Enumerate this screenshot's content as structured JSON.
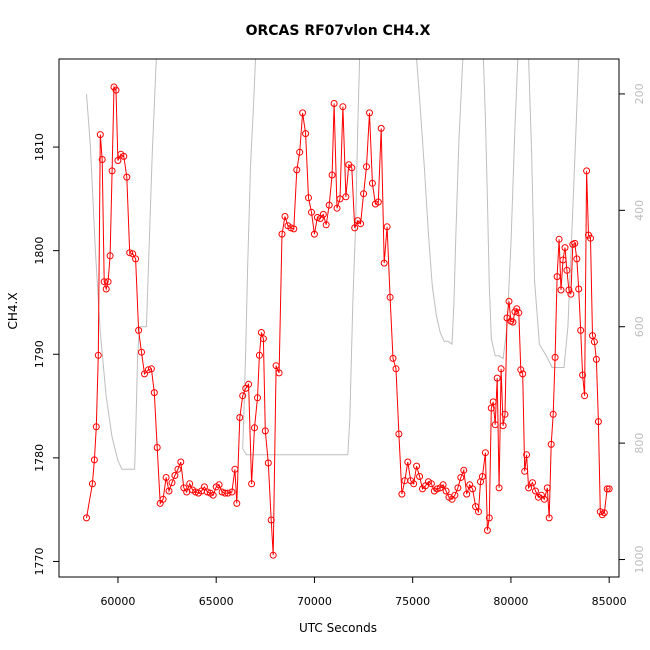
{
  "chart_data": {
    "type": "line",
    "title": "ORCAS RF07vlon CH4.X",
    "xlabel": "UTC Seconds",
    "ylabel": "CH4.X",
    "xlim": [
      57000,
      85500
    ],
    "ylim": [
      1768.5,
      1818.5
    ],
    "y2lim": [
      1030,
      140
    ],
    "x_ticks": [
      60000,
      65000,
      70000,
      75000,
      80000,
      85000
    ],
    "y_ticks": [
      1770,
      1780,
      1790,
      1800,
      1810
    ],
    "y2_ticks": [
      200,
      400,
      600,
      800,
      1000
    ],
    "grid": false,
    "colors": {
      "ch4": "#ff0000",
      "pressure": "#bebebe",
      "axis": "#000000"
    },
    "series": [
      {
        "axis": "left",
        "points": [
          [
            58400,
            1774.2
          ],
          [
            58700,
            1777.5
          ],
          [
            58800,
            1779.8
          ],
          [
            58900,
            1783.0
          ],
          [
            59000,
            1789.9
          ],
          [
            59100,
            1811.2
          ],
          [
            59200,
            1808.8
          ],
          [
            59300,
            1797.0
          ],
          [
            59400,
            1796.3
          ],
          [
            59500,
            1797.0
          ],
          [
            59600,
            1799.5
          ],
          [
            59700,
            1807.7
          ],
          [
            59800,
            1815.8
          ],
          [
            59900,
            1815.5
          ],
          [
            60000,
            1808.7
          ],
          [
            60150,
            1809.3
          ],
          [
            60300,
            1809.1
          ],
          [
            60450,
            1807.1
          ],
          [
            60600,
            1799.8
          ],
          [
            60750,
            1799.7
          ],
          [
            60900,
            1799.2
          ],
          [
            61050,
            1792.3
          ],
          [
            61200,
            1790.2
          ],
          [
            61350,
            1788.1
          ],
          [
            61550,
            1788.5
          ],
          [
            61700,
            1788.6
          ],
          [
            61850,
            1786.3
          ],
          [
            62000,
            1781.0
          ],
          [
            62150,
            1775.6
          ],
          [
            62300,
            1776.0
          ],
          [
            62450,
            1778.1
          ],
          [
            62600,
            1776.8
          ],
          [
            62750,
            1777.6
          ],
          [
            62900,
            1778.3
          ],
          [
            63050,
            1778.9
          ],
          [
            63200,
            1779.6
          ],
          [
            63350,
            1777.1
          ],
          [
            63500,
            1776.7
          ],
          [
            63650,
            1777.5
          ],
          [
            63800,
            1776.9
          ],
          [
            63950,
            1776.7
          ],
          [
            64100,
            1776.6
          ],
          [
            64250,
            1776.8
          ],
          [
            64400,
            1777.2
          ],
          [
            64550,
            1776.7
          ],
          [
            64700,
            1776.6
          ],
          [
            64850,
            1776.4
          ],
          [
            65000,
            1777.2
          ],
          [
            65150,
            1777.4
          ],
          [
            65300,
            1776.7
          ],
          [
            65450,
            1776.6
          ],
          [
            65600,
            1776.6
          ],
          [
            65800,
            1776.7
          ],
          [
            65950,
            1778.9
          ],
          [
            66050,
            1775.6
          ],
          [
            66200,
            1783.9
          ],
          [
            66350,
            1786.0
          ],
          [
            66500,
            1786.7
          ],
          [
            66650,
            1787.1
          ],
          [
            66800,
            1777.5
          ],
          [
            66950,
            1782.9
          ],
          [
            67100,
            1785.8
          ],
          [
            67200,
            1789.9
          ],
          [
            67300,
            1792.1
          ],
          [
            67400,
            1791.5
          ],
          [
            67500,
            1782.6
          ],
          [
            67650,
            1779.5
          ],
          [
            67800,
            1774.0
          ],
          [
            67900,
            1770.6
          ],
          [
            68050,
            1788.9
          ],
          [
            68200,
            1788.2
          ],
          [
            68350,
            1801.6
          ],
          [
            68500,
            1803.3
          ],
          [
            68650,
            1802.4
          ],
          [
            68800,
            1802.2
          ],
          [
            68950,
            1802.1
          ],
          [
            69100,
            1807.8
          ],
          [
            69250,
            1809.5
          ],
          [
            69400,
            1813.3
          ],
          [
            69550,
            1811.3
          ],
          [
            69700,
            1805.1
          ],
          [
            69850,
            1803.7
          ],
          [
            70000,
            1801.6
          ],
          [
            70150,
            1803.2
          ],
          [
            70300,
            1803.1
          ],
          [
            70450,
            1803.5
          ],
          [
            70600,
            1802.5
          ],
          [
            70750,
            1804.4
          ],
          [
            70900,
            1807.3
          ],
          [
            71000,
            1814.2
          ],
          [
            71150,
            1804.1
          ],
          [
            71300,
            1805.0
          ],
          [
            71450,
            1813.9
          ],
          [
            71600,
            1805.2
          ],
          [
            71750,
            1808.3
          ],
          [
            71900,
            1808.0
          ],
          [
            72050,
            1802.2
          ],
          [
            72200,
            1802.9
          ],
          [
            72350,
            1802.6
          ],
          [
            72500,
            1805.5
          ],
          [
            72650,
            1808.1
          ],
          [
            72800,
            1813.3
          ],
          [
            72950,
            1806.5
          ],
          [
            73100,
            1804.5
          ],
          [
            73250,
            1804.7
          ],
          [
            73400,
            1811.8
          ],
          [
            73550,
            1798.8
          ],
          [
            73700,
            1802.3
          ],
          [
            73850,
            1795.5
          ],
          [
            74000,
            1789.6
          ],
          [
            74150,
            1788.6
          ],
          [
            74300,
            1782.3
          ],
          [
            74450,
            1776.5
          ],
          [
            74600,
            1777.8
          ],
          [
            74750,
            1779.6
          ],
          [
            74900,
            1777.8
          ],
          [
            75050,
            1777.5
          ],
          [
            75200,
            1779.2
          ],
          [
            75350,
            1778.2
          ],
          [
            75500,
            1777.0
          ],
          [
            75650,
            1777.3
          ],
          [
            75800,
            1777.7
          ],
          [
            75950,
            1777.5
          ],
          [
            76100,
            1776.8
          ],
          [
            76250,
            1777.0
          ],
          [
            76400,
            1777.1
          ],
          [
            76550,
            1777.4
          ],
          [
            76700,
            1776.8
          ],
          [
            76850,
            1776.2
          ],
          [
            77000,
            1776.0
          ],
          [
            77150,
            1776.4
          ],
          [
            77300,
            1777.1
          ],
          [
            77450,
            1778.1
          ],
          [
            77600,
            1778.8
          ],
          [
            77750,
            1776.5
          ],
          [
            77900,
            1777.4
          ],
          [
            78050,
            1777.0
          ],
          [
            78200,
            1775.3
          ],
          [
            78350,
            1774.8
          ],
          [
            78450,
            1777.7
          ],
          [
            78550,
            1778.2
          ],
          [
            78700,
            1780.5
          ],
          [
            78800,
            1773.0
          ],
          [
            78900,
            1774.2
          ],
          [
            79000,
            1784.8
          ],
          [
            79100,
            1785.4
          ],
          [
            79200,
            1783.2
          ],
          [
            79300,
            1787.7
          ],
          [
            79400,
            1777.1
          ],
          [
            79500,
            1788.6
          ],
          [
            79600,
            1783.1
          ],
          [
            79700,
            1784.2
          ],
          [
            79800,
            1793.5
          ],
          [
            79900,
            1795.1
          ],
          [
            80000,
            1793.2
          ],
          [
            80100,
            1793.1
          ],
          [
            80200,
            1794.1
          ],
          [
            80300,
            1794.4
          ],
          [
            80400,
            1794.0
          ],
          [
            80500,
            1788.5
          ],
          [
            80600,
            1788.1
          ],
          [
            80700,
            1778.7
          ],
          [
            80800,
            1780.3
          ],
          [
            80900,
            1777.1
          ],
          [
            81100,
            1777.6
          ],
          [
            81250,
            1776.8
          ],
          [
            81400,
            1776.2
          ],
          [
            81550,
            1776.4
          ],
          [
            81700,
            1776.0
          ],
          [
            81850,
            1777.1
          ],
          [
            81950,
            1774.2
          ],
          [
            82050,
            1781.3
          ],
          [
            82150,
            1784.2
          ],
          [
            82250,
            1789.7
          ],
          [
            82350,
            1797.5
          ],
          [
            82450,
            1801.1
          ],
          [
            82550,
            1796.2
          ],
          [
            82650,
            1799.1
          ],
          [
            82750,
            1800.3
          ],
          [
            82850,
            1798.1
          ],
          [
            82950,
            1796.2
          ],
          [
            83050,
            1795.8
          ],
          [
            83150,
            1800.6
          ],
          [
            83250,
            1800.7
          ],
          [
            83350,
            1799.2
          ],
          [
            83450,
            1796.3
          ],
          [
            83550,
            1792.3
          ],
          [
            83650,
            1788.0
          ],
          [
            83750,
            1786.0
          ],
          [
            83850,
            1807.7
          ],
          [
            83950,
            1801.5
          ],
          [
            84050,
            1801.2
          ],
          [
            84150,
            1791.8
          ],
          [
            84250,
            1791.2
          ],
          [
            84350,
            1789.5
          ],
          [
            84450,
            1783.5
          ],
          [
            84550,
            1774.8
          ],
          [
            84650,
            1774.5
          ],
          [
            84750,
            1774.7
          ],
          [
            84900,
            1777.0
          ],
          [
            85000,
            1777.0
          ]
        ]
      },
      {
        "axis": "right",
        "points": [
          [
            58400,
            200
          ],
          [
            58600,
            290
          ],
          [
            58850,
            470
          ],
          [
            59100,
            610
          ],
          [
            59400,
            720
          ],
          [
            59700,
            790
          ],
          [
            60000,
            830
          ],
          [
            60200,
            845
          ],
          [
            60400,
            845
          ],
          [
            60850,
            845
          ],
          [
            60900,
            790
          ],
          [
            61000,
            650
          ],
          [
            61100,
            600
          ],
          [
            61450,
            600
          ],
          [
            61550,
            500
          ],
          [
            61750,
            300
          ],
          [
            61950,
            140
          ],
          [
            67000,
            140
          ],
          [
            66900,
            220
          ],
          [
            66750,
            320
          ],
          [
            66600,
            500
          ],
          [
            66500,
            640
          ],
          [
            66400,
            760
          ],
          [
            66350,
            810
          ],
          [
            66550,
            820
          ],
          [
            67200,
            820
          ],
          [
            71700,
            820
          ],
          [
            71800,
            760
          ],
          [
            71950,
            560
          ],
          [
            72100,
            420
          ],
          [
            72200,
            260
          ],
          [
            72300,
            140
          ],
          [
            75200,
            140
          ],
          [
            75400,
            230
          ],
          [
            75600,
            330
          ],
          [
            75800,
            440
          ],
          [
            76000,
            530
          ],
          [
            76200,
            580
          ],
          [
            76400,
            610
          ],
          [
            76600,
            625
          ],
          [
            76800,
            625
          ],
          [
            77000,
            630
          ],
          [
            77100,
            560
          ],
          [
            77200,
            440
          ],
          [
            77350,
            280
          ],
          [
            77550,
            140
          ],
          [
            78600,
            140
          ],
          [
            78700,
            240
          ],
          [
            78800,
            380
          ],
          [
            78900,
            530
          ],
          [
            79000,
            620
          ],
          [
            79200,
            650
          ],
          [
            79400,
            650
          ],
          [
            79600,
            655
          ],
          [
            79800,
            600
          ],
          [
            80000,
            460
          ],
          [
            80200,
            260
          ],
          [
            80350,
            140
          ],
          [
            80900,
            140
          ],
          [
            81050,
            300
          ],
          [
            81200,
            520
          ],
          [
            81450,
            630
          ],
          [
            81800,
            650
          ],
          [
            82100,
            670
          ],
          [
            82350,
            670
          ],
          [
            82700,
            670
          ],
          [
            82900,
            600
          ],
          [
            83100,
            440
          ],
          [
            83300,
            270
          ],
          [
            83450,
            140
          ]
        ]
      }
    ]
  }
}
